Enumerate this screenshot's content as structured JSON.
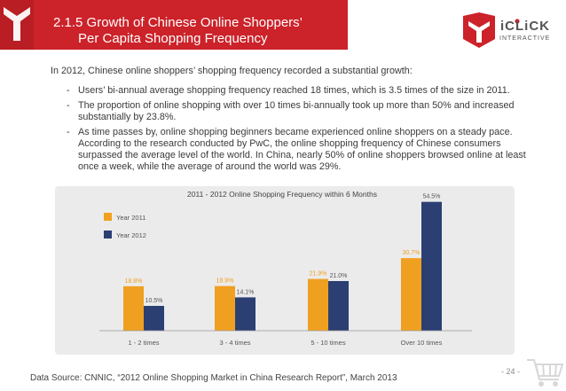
{
  "header": {
    "title_line1": "2.1.5  Growth of Chinese Online Shoppers’",
    "title_line2": "Per Capita Shopping Frequency",
    "color": "#cc2229"
  },
  "logo": {
    "name": "iCLiCK",
    "tagline": "INTERACTIVE"
  },
  "content": {
    "intro": "In 2012, Chinese online shoppers’ shopping frequency recorded a substantial growth:",
    "bullets": [
      "Users’ bi-annual average shopping frequency reached 18 times, which is 3.5 times of the size in 2011.",
      "The proportion of online shopping with over 10 times bi-annually took up more than 50% and increased substantially by 23.8%.",
      "As time passes by, online shopping beginners became experienced online shoppers on a steady pace. According to the research conducted by PwC, the online shopping frequency of Chinese consumers surpassed the average level of the world. In China, nearly 50% of online shoppers browsed online at least once a week, while the average of around the world was 29%."
    ]
  },
  "chart_data": {
    "type": "bar",
    "title": "2011 - 2012 Online Shopping Frequency within 6 Months",
    "categories": [
      "1 - 2 times",
      "3 - 4 times",
      "5 - 10 times",
      "Over 10 times"
    ],
    "series": [
      {
        "name": "Year 2011",
        "color": "#f0a020",
        "values": [
          18.8,
          18.9,
          21.9,
          30.7
        ],
        "labels": [
          "18.8%",
          "18.9%",
          "21.9%",
          "30.7%"
        ]
      },
      {
        "name": "Year 2012",
        "color": "#2b3f73",
        "values": [
          10.5,
          14.1,
          21.0,
          54.5
        ],
        "labels": [
          "10.5%",
          "14.1%",
          "21.0%",
          "54.5%"
        ]
      }
    ],
    "ylim": [
      0,
      60
    ],
    "xlabel": "",
    "ylabel": "",
    "legend": "top-left",
    "grid": false
  },
  "footer": {
    "source": "Data Source: CNNIC, “2012 Online Shopping Market in China Research Report”, March 2013",
    "page": "- 24 -"
  }
}
